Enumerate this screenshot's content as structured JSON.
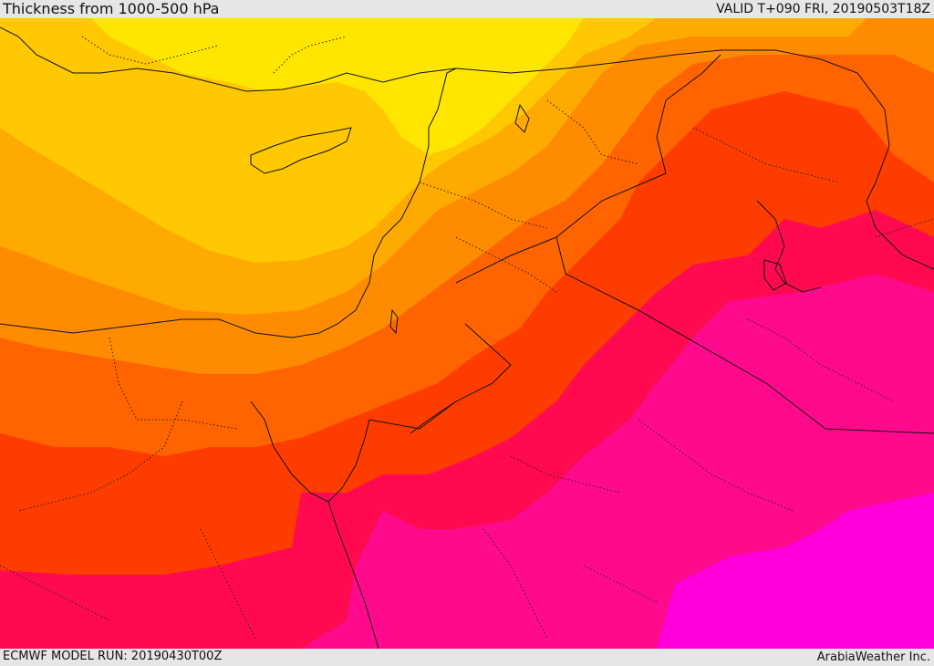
{
  "header": {
    "title": "Thickness from 1000-500 hPa",
    "valid": "VALID T+090 FRI, 20190503T18Z"
  },
  "footer": {
    "model_run": "ECMWF MODEL RUN: 20190430T00Z",
    "brand": "ArabiaWeather Inc."
  },
  "palette": {
    "yellow": "#ffe600",
    "gold": "#ffc800",
    "light_orange": "#ffaa00",
    "orange": "#ff8c00",
    "dark_orange": "#ff6400",
    "red_orange": "#ff3c00",
    "crimson": "#ff0a3c",
    "magenta_red": "#ff0a64",
    "pink": "#ff0a8c",
    "magenta": "#ff00dc"
  }
}
